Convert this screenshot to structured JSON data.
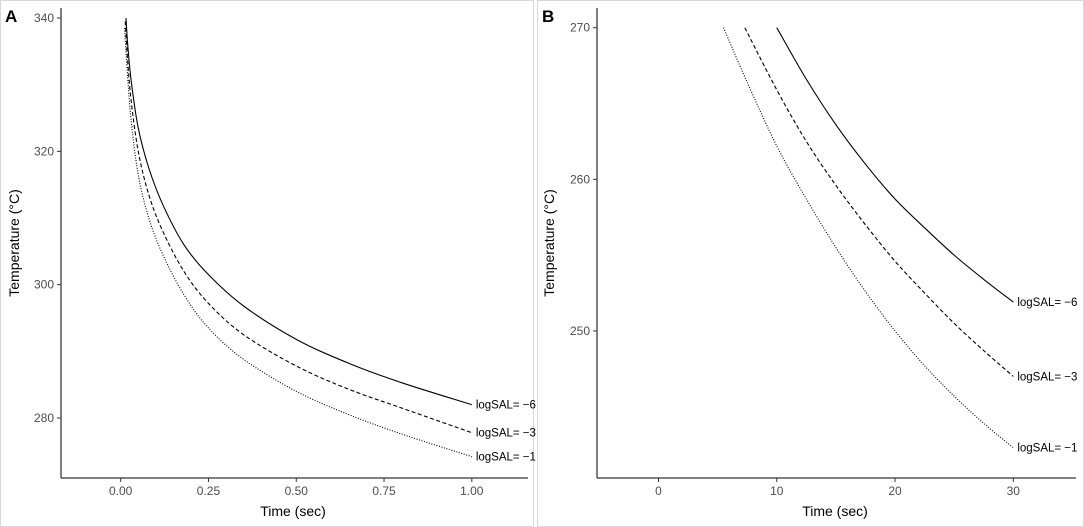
{
  "chart_data": [
    {
      "panel_label": "A",
      "type": "line",
      "title": "",
      "xlabel": "Time (sec)",
      "ylabel": "Temperature (°C)",
      "xlim": [
        -0.17,
        1.16
      ],
      "ylim": [
        271,
        341.5
      ],
      "x_ticks": [
        0.0,
        0.25,
        0.5,
        0.75,
        1.0
      ],
      "x_tick_labels": [
        "0.00",
        "0.25",
        "0.50",
        "0.75",
        "1.00"
      ],
      "y_ticks": [
        280,
        300,
        320,
        340
      ],
      "y_tick_labels": [
        "280",
        "300",
        "320",
        "340"
      ],
      "grid": false,
      "series": [
        {
          "name": "logSAL= −6",
          "label": "logSAL= −6",
          "dash": "solid",
          "x": [
            0.015,
            0.02,
            0.03,
            0.05,
            0.08,
            0.12,
            0.18,
            0.25,
            0.35,
            0.5,
            0.65,
            0.8,
            1.0
          ],
          "y": [
            340.0,
            336.0,
            330.5,
            323.5,
            317.5,
            312.0,
            306.0,
            301.5,
            296.8,
            291.8,
            288.2,
            285.3,
            282.0
          ]
        },
        {
          "name": "logSAL= −3",
          "label": "logSAL= −3",
          "dash": "dashed",
          "x": [
            0.013,
            0.02,
            0.03,
            0.05,
            0.08,
            0.12,
            0.18,
            0.25,
            0.35,
            0.5,
            0.65,
            0.8,
            1.0
          ],
          "y": [
            339.5,
            333.5,
            327.5,
            320.0,
            313.5,
            308.0,
            302.0,
            297.2,
            292.5,
            287.8,
            284.3,
            281.5,
            277.8
          ]
        },
        {
          "name": "logSAL= −1",
          "label": "logSAL= −1",
          "dash": "dotted",
          "x": [
            0.011,
            0.02,
            0.03,
            0.05,
            0.08,
            0.12,
            0.18,
            0.25,
            0.35,
            0.5,
            0.65,
            0.8,
            1.0
          ],
          "y": [
            338.5,
            331.0,
            324.5,
            316.5,
            310.0,
            304.5,
            298.5,
            293.5,
            288.8,
            284.0,
            280.5,
            277.6,
            274.2
          ]
        }
      ]
    },
    {
      "panel_label": "B",
      "type": "line",
      "title": "",
      "xlabel": "Time (sec)",
      "ylabel": "Temperature (°C)",
      "xlim": [
        -5.2,
        35.3
      ],
      "ylim": [
        240.3,
        271.3
      ],
      "x_ticks": [
        0,
        10,
        20,
        30
      ],
      "x_tick_labels": [
        "0",
        "10",
        "20",
        "30"
      ],
      "y_ticks": [
        250,
        260,
        270
      ],
      "y_tick_labels": [
        "250",
        "260",
        "270"
      ],
      "grid": false,
      "series": [
        {
          "name": "logSAL= −6",
          "label": "logSAL= −6",
          "dash": "solid",
          "x": [
            10.0,
            12.5,
            15.0,
            17.5,
            20.0,
            22.5,
            25.0,
            27.5,
            30.0
          ],
          "y": [
            270.0,
            266.6,
            263.6,
            261.0,
            258.7,
            256.8,
            255.0,
            253.4,
            251.9
          ]
        },
        {
          "name": "logSAL= −3",
          "label": "logSAL= −3",
          "dash": "dashed",
          "x": [
            7.3,
            10.0,
            12.5,
            15.0,
            17.5,
            20.0,
            22.5,
            25.0,
            27.5,
            30.0
          ],
          "y": [
            270.0,
            265.9,
            262.5,
            259.6,
            257.0,
            254.6,
            252.5,
            250.5,
            248.7,
            247.0
          ]
        },
        {
          "name": "logSAL= −1",
          "label": "logSAL= −1",
          "dash": "dotted",
          "x": [
            5.5,
            7.5,
            10.0,
            12.5,
            15.0,
            17.5,
            20.0,
            22.5,
            25.0,
            27.5,
            30.0
          ],
          "y": [
            270.0,
            266.4,
            262.2,
            258.7,
            255.5,
            252.6,
            250.0,
            247.7,
            245.7,
            243.9,
            242.3
          ]
        }
      ]
    }
  ]
}
